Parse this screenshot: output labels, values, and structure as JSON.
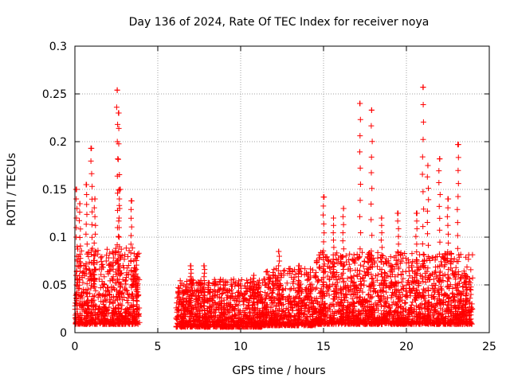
{
  "chart_data": {
    "type": "scatter",
    "title": "Day 136 of 2024, Rate Of TEC Index for receiver noya",
    "xlabel": "GPS time / hours",
    "ylabel": "ROTI / TECUs",
    "xlim": [
      0,
      25
    ],
    "ylim": [
      0,
      0.3
    ],
    "x_ticks": [
      "0",
      "5",
      "10",
      "15",
      "20",
      "25"
    ],
    "y_ticks": [
      "0",
      "0.05",
      "0.1",
      "0.15",
      "0.2",
      "0.25",
      "0.3"
    ],
    "grid": true,
    "marker": "+",
    "color": "#ff0000",
    "peaks": [
      {
        "x": 0.1,
        "y": 0.15
      },
      {
        "x": 0.3,
        "y": 0.135
      },
      {
        "x": 0.7,
        "y": 0.155
      },
      {
        "x": 1.0,
        "y": 0.193
      },
      {
        "x": 1.2,
        "y": 0.14
      },
      {
        "x": 2.55,
        "y": 0.254
      },
      {
        "x": 2.65,
        "y": 0.23
      },
      {
        "x": 2.7,
        "y": 0.15
      },
      {
        "x": 3.4,
        "y": 0.138
      },
      {
        "x": 3.7,
        "y": 0.08
      },
      {
        "x": 7.0,
        "y": 0.07
      },
      {
        "x": 7.8,
        "y": 0.07
      },
      {
        "x": 10.8,
        "y": 0.06
      },
      {
        "x": 12.3,
        "y": 0.085
      },
      {
        "x": 13.5,
        "y": 0.07
      },
      {
        "x": 15.0,
        "y": 0.142
      },
      {
        "x": 15.6,
        "y": 0.12
      },
      {
        "x": 16.2,
        "y": 0.13
      },
      {
        "x": 17.2,
        "y": 0.24
      },
      {
        "x": 17.9,
        "y": 0.233
      },
      {
        "x": 18.5,
        "y": 0.12
      },
      {
        "x": 19.5,
        "y": 0.125
      },
      {
        "x": 20.6,
        "y": 0.125
      },
      {
        "x": 21.0,
        "y": 0.257
      },
      {
        "x": 21.3,
        "y": 0.175
      },
      {
        "x": 22.0,
        "y": 0.182
      },
      {
        "x": 22.5,
        "y": 0.14
      },
      {
        "x": 23.1,
        "y": 0.197
      },
      {
        "x": 23.6,
        "y": 0.06
      }
    ],
    "segments": [
      {
        "start": 0.0,
        "end": 3.9,
        "base": 0.03,
        "spread": 0.05
      },
      {
        "start": 6.1,
        "end": 11.3,
        "base": 0.02,
        "spread": 0.03
      },
      {
        "start": 11.3,
        "end": 14.5,
        "base": 0.025,
        "spread": 0.035
      },
      {
        "start": 14.5,
        "end": 24.0,
        "base": 0.03,
        "spread": 0.045
      }
    ]
  }
}
